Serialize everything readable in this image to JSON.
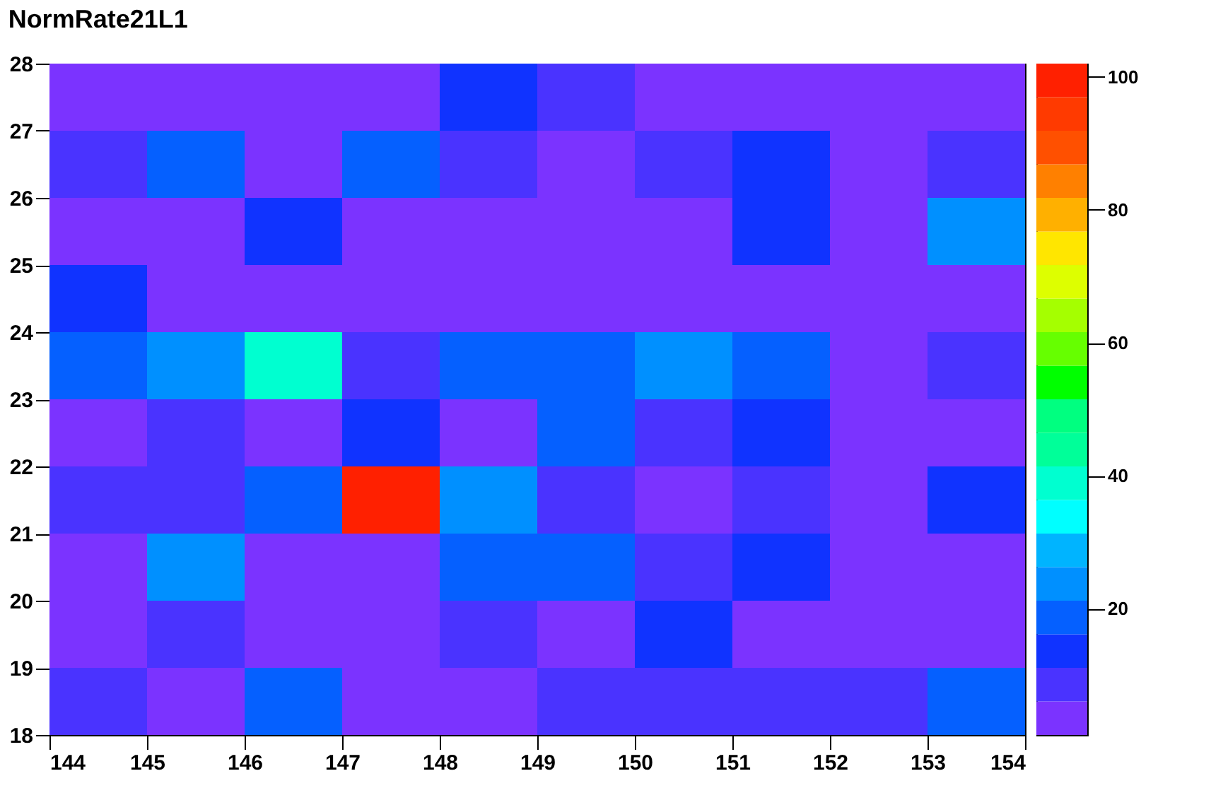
{
  "chart_data": {
    "type": "heatmap",
    "title": "NormRate21L1",
    "xlim": [
      144,
      154
    ],
    "xticks": [
      144,
      145,
      146,
      147,
      148,
      149,
      150,
      151,
      152,
      153,
      154
    ],
    "ylim": [
      18,
      28
    ],
    "yticks": [
      18,
      19,
      20,
      21,
      22,
      23,
      24,
      25,
      26,
      27,
      28
    ],
    "cells": [
      [
        3,
        3,
        3,
        3,
        13,
        8,
        3,
        3,
        3,
        3
      ],
      [
        8,
        18,
        3,
        18,
        8,
        3,
        8,
        13,
        3,
        8
      ],
      [
        3,
        3,
        13,
        3,
        3,
        3,
        3,
        13,
        3,
        25
      ],
      [
        13,
        3,
        3,
        3,
        3,
        3,
        3,
        3,
        3,
        3
      ],
      [
        18,
        25,
        38,
        8,
        18,
        18,
        25,
        18,
        3,
        8
      ],
      [
        3,
        8,
        3,
        13,
        3,
        18,
        8,
        13,
        3,
        3
      ],
      [
        8,
        8,
        18,
        100,
        25,
        8,
        3,
        8,
        3,
        13
      ],
      [
        3,
        25,
        3,
        3,
        18,
        18,
        8,
        13,
        3,
        3
      ],
      [
        3,
        8,
        3,
        3,
        8,
        3,
        13,
        3,
        3,
        3
      ],
      [
        8,
        3,
        18,
        3,
        3,
        8,
        8,
        8,
        8,
        18
      ]
    ],
    "clim": [
      1,
      102
    ],
    "cticks": [
      20,
      40,
      60,
      80,
      100
    ]
  }
}
